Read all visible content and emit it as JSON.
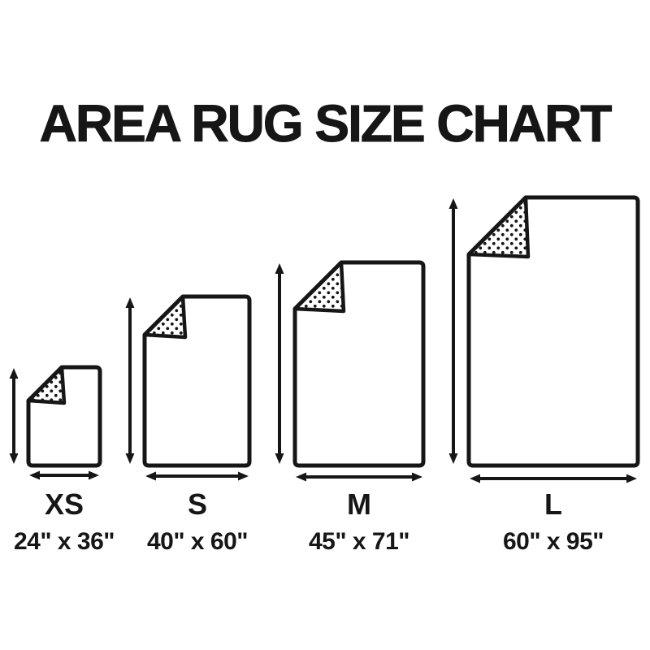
{
  "title": "AREA RUG SIZE CHART",
  "colors": {
    "ink": "#161616",
    "background": "#ffffff"
  },
  "chart_data": {
    "type": "diagram",
    "title": "AREA RUG SIZE CHART",
    "unit": "inches",
    "items": [
      {
        "label": "XS",
        "dimensions": "24\" x 36\"",
        "width_in": 24,
        "height_in": 36
      },
      {
        "label": "S",
        "dimensions": "40\" x 60\"",
        "width_in": 40,
        "height_in": 60
      },
      {
        "label": "M",
        "dimensions": "45\" x 71\"",
        "width_in": 45,
        "height_in": 71
      },
      {
        "label": "L",
        "dimensions": "60\" x 95\"",
        "width_in": 60,
        "height_in": 95
      }
    ]
  }
}
